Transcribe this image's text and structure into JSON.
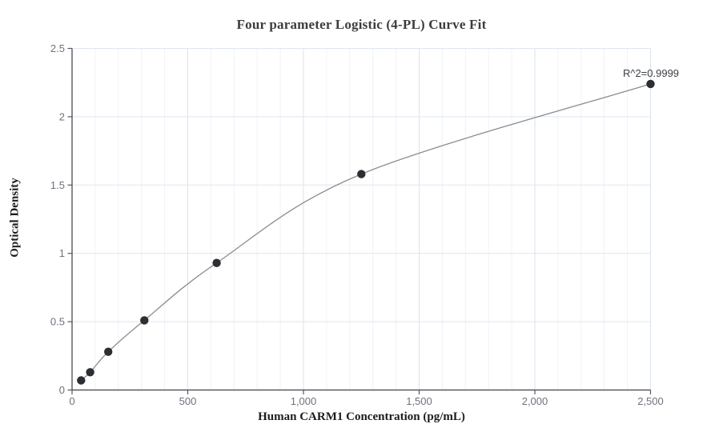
{
  "chart_data": {
    "type": "scatter",
    "title": "Four parameter Logistic (4-PL) Curve Fit",
    "xlabel": "Human CARM1 Concentration (pg/mL)",
    "ylabel": "Optical Density",
    "fit_type": "4-PL logistic curve through points",
    "r_squared_label": "R^2=0.9999",
    "x": [
      39.06,
      78.13,
      156.25,
      312.5,
      625,
      1250,
      2500
    ],
    "y": [
      0.07,
      0.13,
      0.28,
      0.51,
      0.93,
      1.58,
      2.24
    ],
    "xlim": [
      0,
      2500
    ],
    "ylim": [
      0,
      2.5
    ],
    "x_tick_values": [
      0,
      500,
      1000,
      1500,
      2000,
      2500
    ],
    "x_tick_labels": [
      "0",
      "500",
      "1,000",
      "1,500",
      "2,000",
      "2,500"
    ],
    "y_tick_values": [
      0,
      0.5,
      1,
      1.5,
      2,
      2.5
    ],
    "y_tick_labels": [
      "0",
      "0.5",
      "1",
      "1.5",
      "2",
      "2.5"
    ],
    "x_minor_grid_step": 100,
    "grid": true,
    "legend": null,
    "colors": {
      "point": "#2c2e33",
      "curve": "#8b8d90",
      "axis": "#55585e",
      "tick_label": "#6d727c",
      "grid_major": "#dbe2ef",
      "grid_minor": "#eff2f8",
      "grid_horizontal": "#dfe5f0",
      "title": "#3d3d3d",
      "axis_label": "#1c1c1c",
      "annotation": "#3a3e45"
    }
  }
}
